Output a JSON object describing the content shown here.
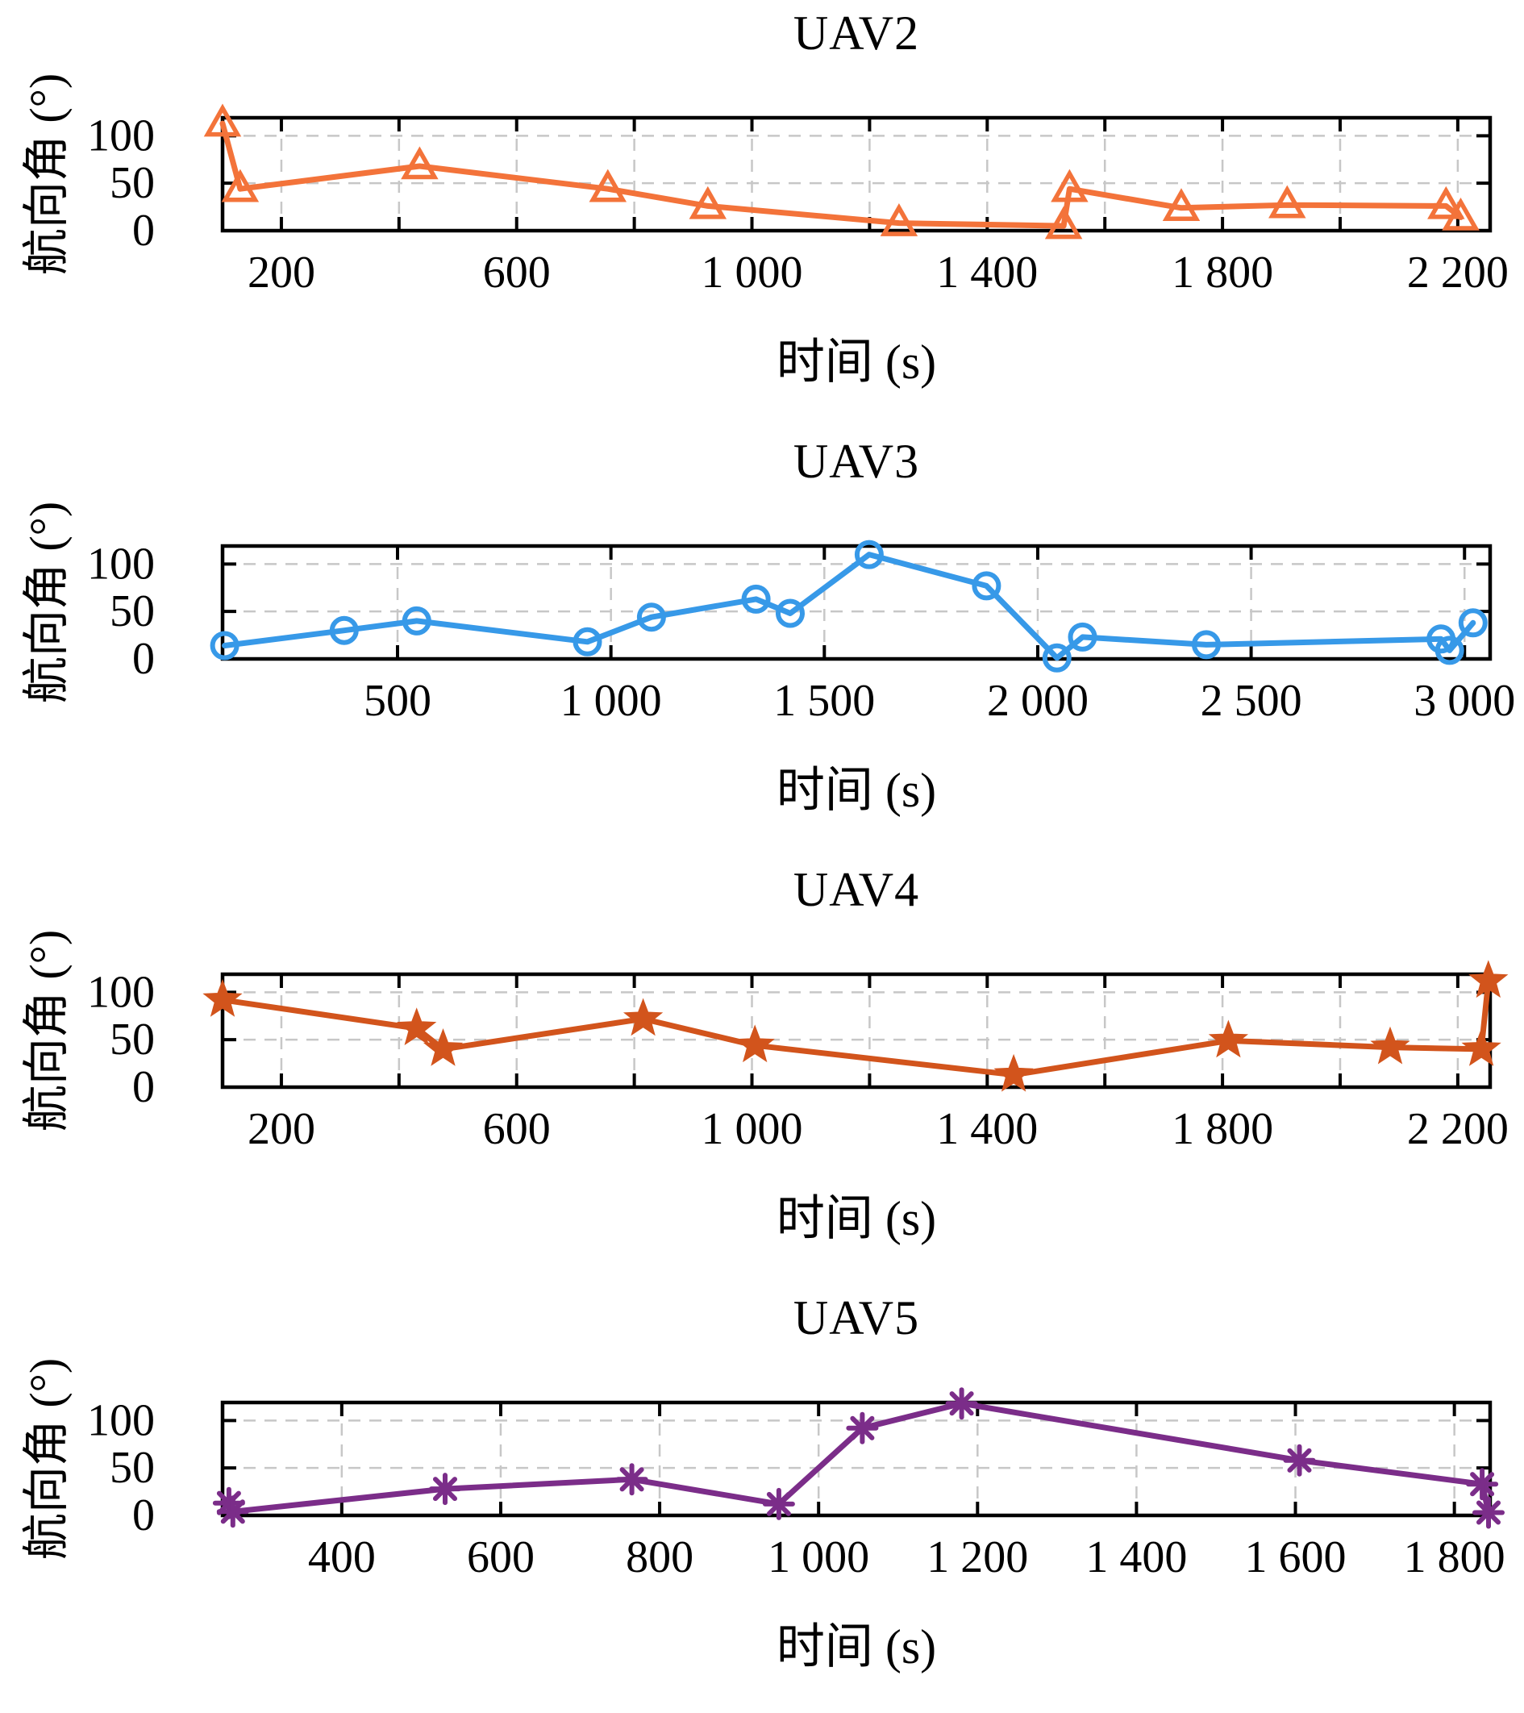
{
  "style": {
    "background": "#ffffff",
    "axis_color": "#000000",
    "grid_color": "#c7c7c7",
    "text_color": "#000000"
  },
  "chart_data": [
    {
      "type": "line",
      "title": "UAV2",
      "xlabel": "时间 (s)",
      "ylabel": "航向角 (°)",
      "color": "#F3733A",
      "marker": "triangle-open",
      "grid": "dashed",
      "legend": "none",
      "xlim": [
        100,
        2255
      ],
      "ylim": [
        0,
        119
      ],
      "x_all_ticks": [
        200,
        400,
        600,
        800,
        1000,
        1200,
        1400,
        1600,
        1800,
        2000,
        2200
      ],
      "x_labeled_ticks": [
        200,
        600,
        1000,
        1400,
        1800,
        2200
      ],
      "x_tick_labels": [
        "200",
        "600",
        "1 000",
        "1 400",
        "1 800",
        "2 200"
      ],
      "y_ticks": [
        0,
        50,
        100
      ],
      "y_tick_labels": [
        "0",
        "50",
        "100"
      ],
      "y_gridlines": [
        50,
        100
      ],
      "x": [
        100,
        130,
        435,
        755,
        925,
        1250,
        1530,
        1540,
        1730,
        1910,
        2180,
        2205
      ],
      "y": [
        113,
        44,
        68,
        44,
        26,
        8,
        5,
        44,
        24,
        27,
        26,
        14
      ]
    },
    {
      "type": "line",
      "title": "UAV3",
      "xlabel": "时间 (s)",
      "ylabel": "航向角 (°)",
      "color": "#3799E8",
      "marker": "circle-open",
      "grid": "dashed",
      "legend": "none",
      "xlim": [
        90,
        3060
      ],
      "ylim": [
        0,
        119
      ],
      "x_all_ticks": [
        500,
        1000,
        1500,
        2000,
        2500,
        3000
      ],
      "x_labeled_ticks": [
        500,
        1000,
        1500,
        2000,
        2500,
        3000
      ],
      "x_tick_labels": [
        "500",
        "1 000",
        "1 500",
        "2 000",
        "2 500",
        "3 000"
      ],
      "y_ticks": [
        0,
        50,
        100
      ],
      "y_tick_labels": [
        "0",
        "50",
        "100"
      ],
      "y_gridlines": [
        50,
        100
      ],
      "x": [
        95,
        375,
        545,
        945,
        1095,
        1340,
        1420,
        1605,
        1880,
        2045,
        2105,
        2395,
        2945,
        2965,
        3020
      ],
      "y": [
        14,
        30,
        40,
        18,
        44,
        63,
        48,
        110,
        77,
        1,
        23,
        15,
        21,
        9,
        38
      ]
    },
    {
      "type": "line",
      "title": "UAV4",
      "xlabel": "时间 (s)",
      "ylabel": "航向角 (°)",
      "color": "#D2541C",
      "marker": "star-filled",
      "grid": "dashed",
      "legend": "none",
      "xlim": [
        100,
        2255
      ],
      "ylim": [
        0,
        119
      ],
      "x_all_ticks": [
        200,
        400,
        600,
        800,
        1000,
        1200,
        1400,
        1600,
        1800,
        2000,
        2200
      ],
      "x_labeled_ticks": [
        200,
        600,
        1000,
        1400,
        1800,
        2200
      ],
      "x_tick_labels": [
        "200",
        "600",
        "1 000",
        "1 400",
        "1 800",
        "2 200"
      ],
      "y_ticks": [
        0,
        50,
        100
      ],
      "y_tick_labels": [
        "0",
        "50",
        "100"
      ],
      "y_gridlines": [
        50,
        100
      ],
      "x": [
        100,
        430,
        475,
        815,
        1005,
        1445,
        1810,
        2085,
        2240,
        2252
      ],
      "y": [
        92,
        62,
        40,
        72,
        44,
        13,
        49,
        42,
        40,
        112
      ]
    },
    {
      "type": "line",
      "title": "UAV5",
      "xlabel": "时间 (s)",
      "ylabel": "航向角 (°)",
      "color": "#7B2D89",
      "marker": "asterisk",
      "grid": "dashed",
      "legend": "none",
      "xlim": [
        250,
        1845
      ],
      "ylim": [
        0,
        119
      ],
      "x_all_ticks": [
        400,
        600,
        800,
        1000,
        1200,
        1400,
        1600,
        1800
      ],
      "x_labeled_ticks": [
        400,
        600,
        800,
        1000,
        1200,
        1400,
        1600,
        1800
      ],
      "x_tick_labels": [
        "400",
        "600",
        "800",
        "1 000",
        "1 200",
        "1 400",
        "1 600",
        "1 800"
      ],
      "y_ticks": [
        0,
        50,
        100
      ],
      "y_tick_labels": [
        "0",
        "50",
        "100"
      ],
      "y_gridlines": [
        50,
        100
      ],
      "x": [
        258,
        263,
        530,
        765,
        950,
        1055,
        1180,
        1605,
        1835,
        1843
      ],
      "y": [
        13,
        4,
        28,
        38,
        12,
        92,
        118,
        58,
        33,
        3
      ]
    }
  ]
}
